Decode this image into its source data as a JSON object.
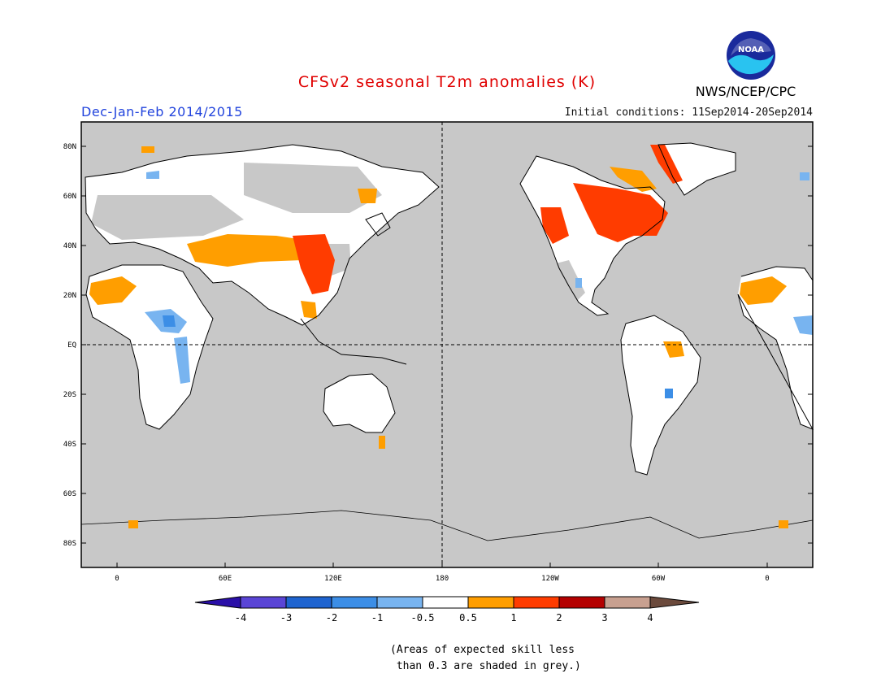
{
  "header": {
    "title": "CFSv2 seasonal T2m anomalies (K)",
    "title_color": "#e00000",
    "subtitle": "Dec-Jan-Feb 2014/2015",
    "subtitle_color": "#2244dd",
    "initial_conditions": "Initial conditions: 11Sep2014-20Sep2014",
    "agency": "NWS/NCEP/CPC",
    "logo": {
      "text": "NOAA",
      "icon": "noaa-logo-icon"
    }
  },
  "map": {
    "ocean_color": "#c8c8c8",
    "coast_color": "#000000",
    "lat_labels": [
      "80N",
      "60N",
      "40N",
      "20N",
      "EQ",
      "20S",
      "40S",
      "60S",
      "80S"
    ],
    "lon_labels": [
      "0",
      "60E",
      "120E",
      "180",
      "120W",
      "60W",
      "0"
    ]
  },
  "colorbar": {
    "labels": [
      "-4",
      "-3",
      "-2",
      "-1",
      "-0.5",
      "0.5",
      "1",
      "2",
      "3",
      "4"
    ],
    "colors": [
      "#2a0fa8",
      "#5a45d6",
      "#1f64d0",
      "#3c8ee6",
      "#78b4f0",
      "#ffffff",
      "#ff9e00",
      "#ff3c00",
      "#b40000",
      "#c8a090",
      "#6b4a3c"
    ]
  },
  "note": {
    "line1": "(Areas of expected skill less",
    "line2": " than 0.3 are shaded in grey.)"
  }
}
